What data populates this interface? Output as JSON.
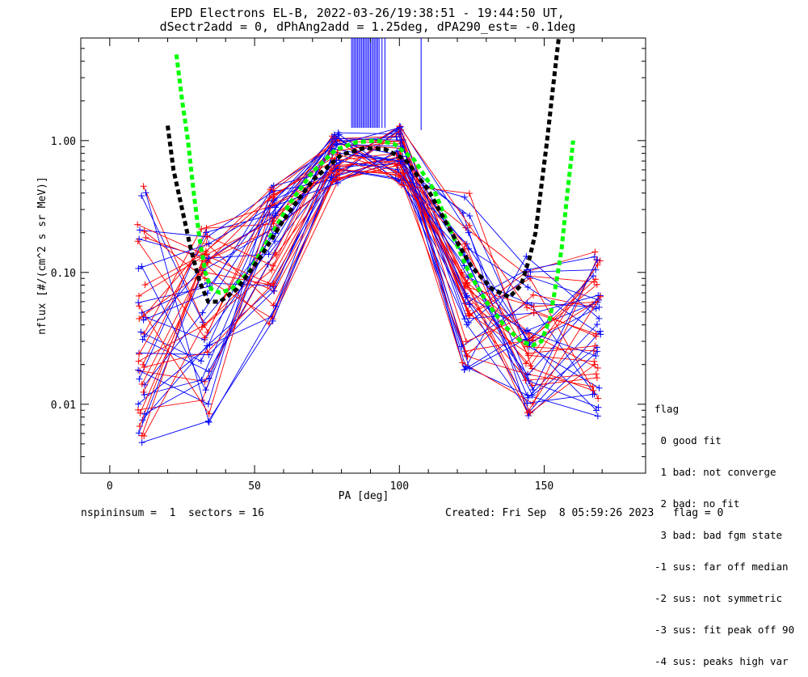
{
  "chart_data": {
    "type": "scatter",
    "title_line1": "EPD Electrons EL-B, 2022-03-26/19:38:51 - 19:44:50 UT,",
    "title_line2": "dSectr2add = 0, dPhAng2add = 1.25deg, dPA290_est=  -0.1deg",
    "xlabel": "PA [deg]",
    "ylabel": "nflux [#/(cm^2 s sr MeV)]",
    "xlim": [
      -10,
      185
    ],
    "ylim": [
      0.003,
      6.0
    ],
    "yscale": "log",
    "x_ticks": [
      0,
      50,
      100,
      150
    ],
    "x_tick_labels": [
      "0",
      "50",
      "100",
      "150"
    ],
    "y_ticks": [
      0.01,
      0.1,
      1.0
    ],
    "y_tick_labels": [
      "0.01",
      "0.10",
      "1.00"
    ],
    "pa_bins": [
      11,
      33,
      56,
      78,
      100,
      123,
      145,
      168
    ],
    "series": [
      {
        "color": "#ff0000",
        "marker": "+"
      },
      {
        "color": "#0000ff",
        "marker": "+"
      }
    ],
    "fit_curves": [
      {
        "color": "#00ff00",
        "style": "dashed",
        "points": [
          [
            23,
            4.5
          ],
          [
            25,
            2.0
          ],
          [
            27,
            1.0
          ],
          [
            29,
            0.4
          ],
          [
            31,
            0.18
          ],
          [
            33,
            0.1
          ],
          [
            35,
            0.075
          ],
          [
            38,
            0.07
          ],
          [
            42,
            0.075
          ],
          [
            48,
            0.1
          ],
          [
            55,
            0.18
          ],
          [
            62,
            0.33
          ],
          [
            70,
            0.58
          ],
          [
            78,
            0.85
          ],
          [
            85,
            0.97
          ],
          [
            92,
            1.0
          ],
          [
            98,
            0.95
          ],
          [
            105,
            0.72
          ],
          [
            112,
            0.42
          ],
          [
            118,
            0.2
          ],
          [
            124,
            0.1
          ],
          [
            130,
            0.06
          ],
          [
            136,
            0.04
          ],
          [
            142,
            0.03
          ],
          [
            146,
            0.028
          ],
          [
            149,
            0.03
          ],
          [
            152,
            0.045
          ],
          [
            154,
            0.08
          ],
          [
            156,
            0.15
          ],
          [
            158,
            0.4
          ],
          [
            160,
            1.0
          ]
        ]
      },
      {
        "color": "#000000",
        "style": "dashed",
        "points": [
          [
            20,
            1.3
          ],
          [
            22,
            0.6
          ],
          [
            25,
            0.3
          ],
          [
            28,
            0.15
          ],
          [
            31,
            0.085
          ],
          [
            34,
            0.06
          ],
          [
            38,
            0.06
          ],
          [
            44,
            0.075
          ],
          [
            52,
            0.13
          ],
          [
            60,
            0.25
          ],
          [
            70,
            0.5
          ],
          [
            80,
            0.78
          ],
          [
            88,
            0.88
          ],
          [
            95,
            0.86
          ],
          [
            102,
            0.72
          ],
          [
            110,
            0.42
          ],
          [
            118,
            0.2
          ],
          [
            125,
            0.11
          ],
          [
            132,
            0.075
          ],
          [
            138,
            0.065
          ],
          [
            142,
            0.08
          ],
          [
            145,
            0.13
          ],
          [
            147,
            0.2
          ],
          [
            149,
            0.45
          ],
          [
            151,
            1.0
          ],
          [
            153,
            2.5
          ],
          [
            155,
            6.0
          ]
        ]
      }
    ],
    "peak_lines_x": [
      83.5,
      84,
      84.5,
      85,
      85.5,
      86,
      86.5,
      87,
      87.5,
      88,
      88.5,
      89,
      89.5,
      90,
      90.5,
      91,
      91.5,
      92,
      92.5,
      93,
      94,
      95,
      107.5
    ],
    "peak_lines_color": "#0000ff"
  },
  "footer": {
    "left": "nspininsum =  1  sectors = 16",
    "right": "Created: Fri Sep  8 05:59:26 2023   flag = 0"
  },
  "legend": {
    "title": "flag",
    "items": [
      " 0 good fit",
      " 1 bad: not converge",
      " 2 bad: no fit",
      " 3 bad: bad fgm state",
      "-1 sus: far off median",
      "-2 sus: not symmetric",
      "-3 sus: fit peak off 90",
      "-4 sus: peaks high var"
    ]
  }
}
